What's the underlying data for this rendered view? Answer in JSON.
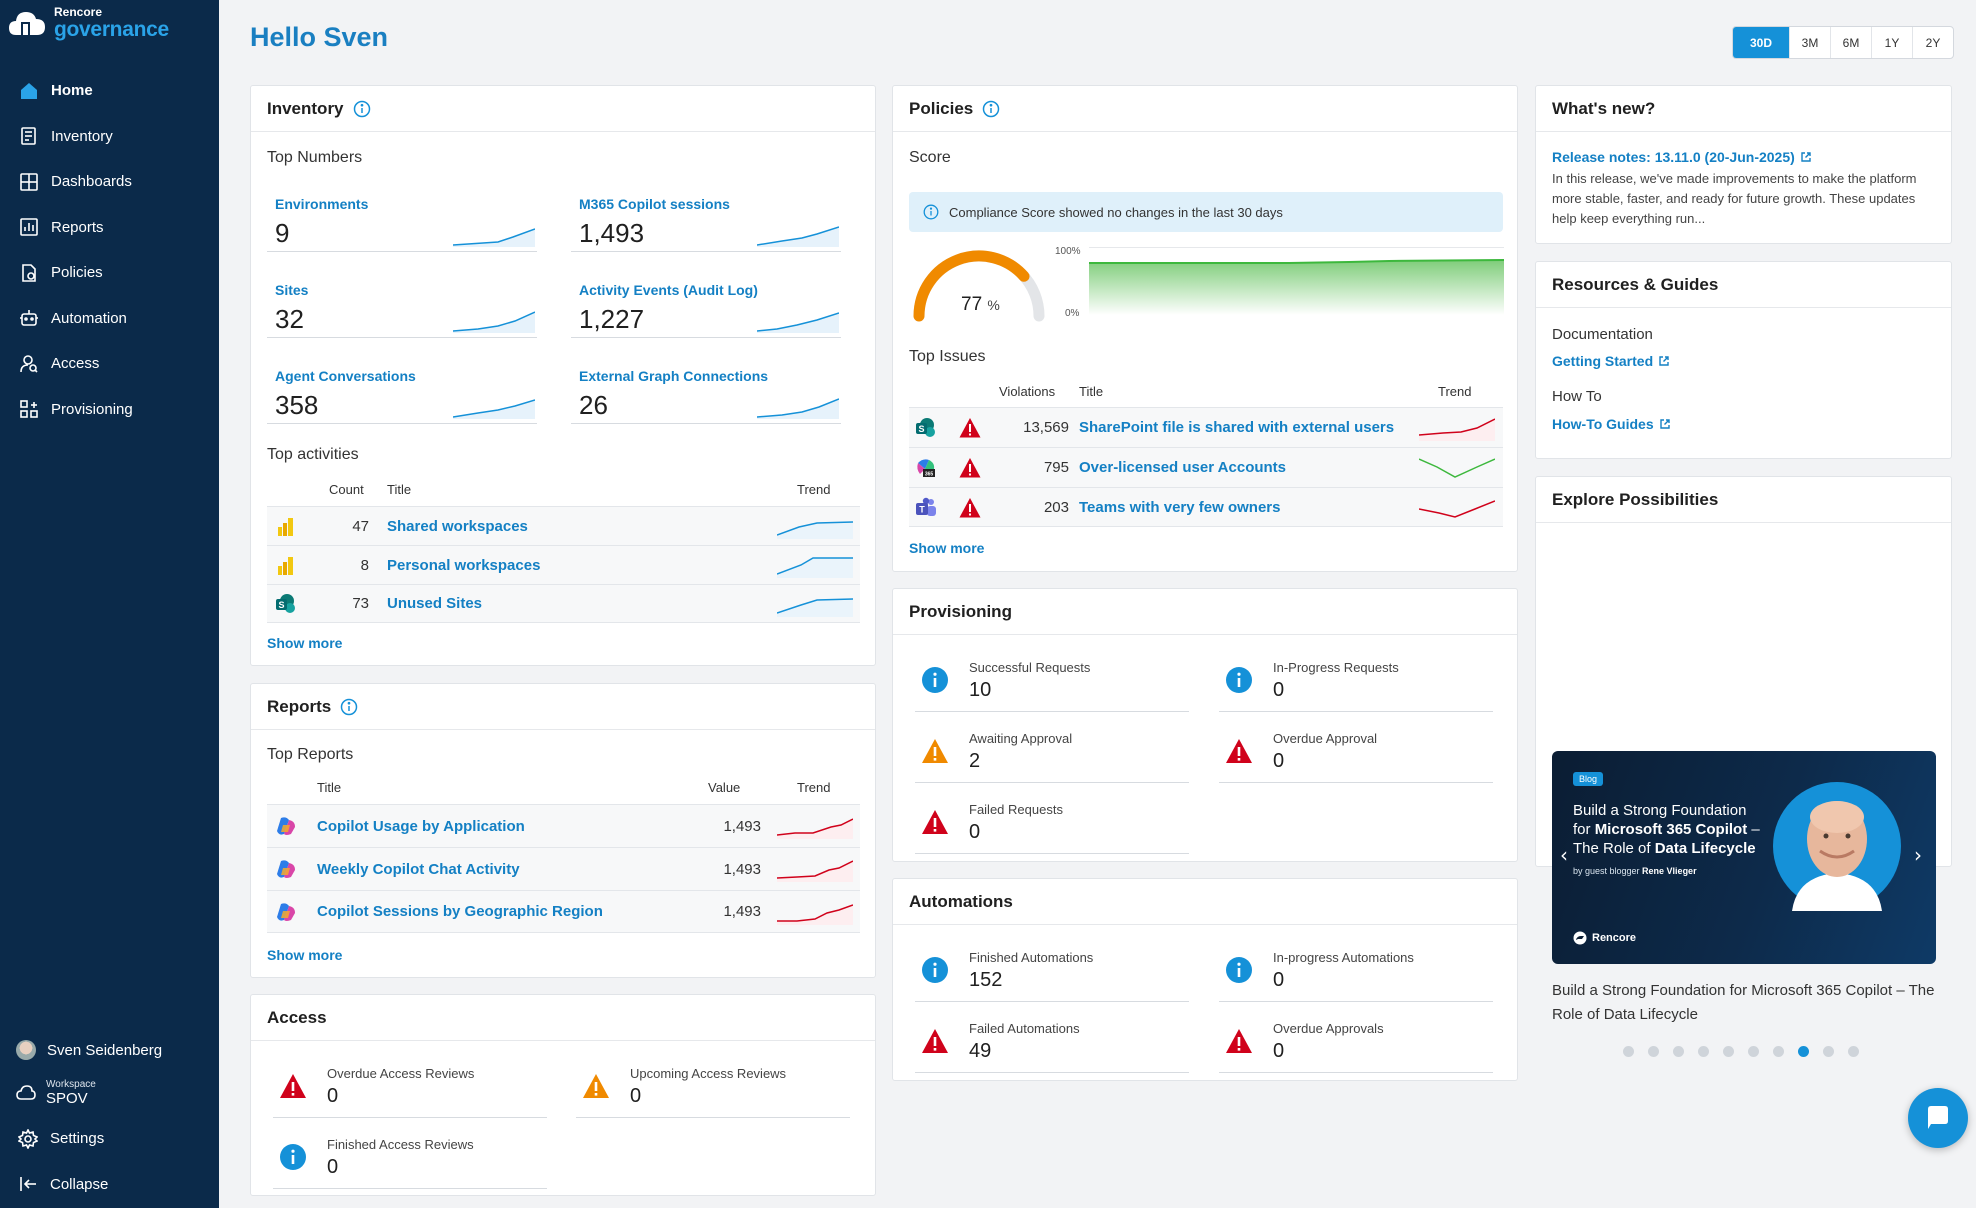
{
  "app": {
    "logo_small": "Rencore",
    "logo_big": "governance"
  },
  "nav": [
    {
      "label": "Home",
      "icon": "home-icon"
    },
    {
      "label": "Inventory",
      "icon": "inventory-icon"
    },
    {
      "label": "Dashboards",
      "icon": "dashboards-icon"
    },
    {
      "label": "Reports",
      "icon": "reports-icon"
    },
    {
      "label": "Policies",
      "icon": "policies-icon"
    },
    {
      "label": "Automation",
      "icon": "automation-icon"
    },
    {
      "label": "Access",
      "icon": "access-icon"
    },
    {
      "label": "Provisioning",
      "icon": "provisioning-icon"
    }
  ],
  "sidebar_bottom": {
    "user": "Sven Seidenberg",
    "workspace_label": "Workspace",
    "workspace": "SPOV",
    "settings": "Settings",
    "collapse": "Collapse"
  },
  "greeting": "Hello Sven",
  "ranges": [
    "30D",
    "3M",
    "6M",
    "1Y",
    "2Y"
  ],
  "inventory": {
    "title": "Inventory",
    "top_numbers_label": "Top Numbers",
    "numbers": [
      {
        "label": "Environments",
        "value": "9"
      },
      {
        "label": "M365 Copilot sessions",
        "value": "1,493"
      },
      {
        "label": "Sites",
        "value": "32"
      },
      {
        "label": "Activity Events (Audit Log)",
        "value": "1,227"
      },
      {
        "label": "Agent Conversations",
        "value": "358"
      },
      {
        "label": "External Graph Connections",
        "value": "26"
      }
    ],
    "top_activities_label": "Top activities",
    "activity_headers": {
      "count": "Count",
      "title": "Title",
      "trend": "Trend"
    },
    "activities": [
      {
        "count": "47",
        "title": "Shared workspaces",
        "icon": "power-bi-icon"
      },
      {
        "count": "8",
        "title": "Personal workspaces",
        "icon": "power-bi-icon"
      },
      {
        "count": "73",
        "title": "Unused Sites",
        "icon": "sharepoint-icon"
      }
    ],
    "show_more": "Show more"
  },
  "reports": {
    "title": "Reports",
    "top_reports_label": "Top Reports",
    "headers": {
      "title": "Title",
      "value": "Value",
      "trend": "Trend"
    },
    "items": [
      {
        "title": "Copilot Usage by Application",
        "value": "1,493",
        "icon": "copilot-icon"
      },
      {
        "title": "Weekly Copilot Chat Activity",
        "value": "1,493",
        "icon": "copilot-icon"
      },
      {
        "title": "Copilot Sessions by Geographic Region",
        "value": "1,493",
        "icon": "copilot-icon"
      }
    ],
    "show_more": "Show more"
  },
  "access": {
    "title": "Access",
    "items": [
      {
        "label": "Overdue Access Reviews",
        "value": "0",
        "status": "error"
      },
      {
        "label": "Upcoming Access Reviews",
        "value": "0",
        "status": "warning"
      },
      {
        "label": "Finished Access Reviews",
        "value": "0",
        "status": "info"
      }
    ]
  },
  "policies": {
    "title": "Policies",
    "score_label": "Score",
    "banner": "Compliance Score showed no changes in the last 30 days",
    "score_value": "77",
    "score_unit": "%",
    "score_fraction": 0.77,
    "chart_max_label": "100%",
    "chart_min_label": "0%",
    "top_issues_label": "Top Issues",
    "headers": {
      "violations": "Violations",
      "title": "Title",
      "trend": "Trend"
    },
    "issues": [
      {
        "violations": "13,569",
        "title": "SharePoint file is shared with external users",
        "icon": "sharepoint-icon",
        "trend_color": "#d0021b"
      },
      {
        "violations": "795",
        "title": "Over-licensed user Accounts",
        "icon": "m365-icon",
        "trend_color": "#3db83d"
      },
      {
        "violations": "203",
        "title": "Teams with very few owners",
        "icon": "teams-icon",
        "trend_color": "#d0021b"
      }
    ],
    "show_more": "Show more"
  },
  "provisioning": {
    "title": "Provisioning",
    "items": [
      {
        "label": "Successful Requests",
        "value": "10",
        "status": "info"
      },
      {
        "label": "In-Progress Requests",
        "value": "0",
        "status": "info"
      },
      {
        "label": "Awaiting Approval",
        "value": "2",
        "status": "warning"
      },
      {
        "label": "Overdue Approval",
        "value": "0",
        "status": "error"
      },
      {
        "label": "Failed Requests",
        "value": "0",
        "status": "error"
      }
    ]
  },
  "automations": {
    "title": "Automations",
    "items": [
      {
        "label": "Finished Automations",
        "value": "152",
        "status": "info"
      },
      {
        "label": "In-progress Automations",
        "value": "0",
        "status": "info"
      },
      {
        "label": "Failed Automations",
        "value": "49",
        "status": "error"
      },
      {
        "label": "Overdue Approvals",
        "value": "0",
        "status": "error"
      }
    ]
  },
  "whats_new": {
    "title": "What's new?",
    "link": "Release notes: 13.11.0 (20-Jun-2025)",
    "text": "In this release, we've made improvements to make the platform more stable, faster, and ready for future growth. These updates help keep everything run..."
  },
  "resources": {
    "title": "Resources & Guides",
    "doc_label": "Documentation",
    "doc_link": "Getting Started",
    "howto_label": "How To",
    "howto_link": "How-To Guides"
  },
  "explore": {
    "title": "Explore Possibilities",
    "banner_tag": "Blog",
    "banner_line1": "Build a Strong Foundation",
    "banner_line2_a": "for ",
    "banner_line2_b": "Microsoft 365 Copilot",
    "banner_line2_c": " –",
    "banner_line3_a": "The Role of ",
    "banner_line3_b": "Data Lifecycle",
    "banner_byline_a": "by guest blogger ",
    "banner_byline_b": "Rene Vlieger",
    "banner_brand": "Rencore",
    "caption": "Build a Strong Foundation for Microsoft 365 Copilot – The Role of Data Lifecycle",
    "dot_count": 10,
    "active_dot": 7
  },
  "colors": {
    "sidebar": "#0b2a4a",
    "accent": "#1591d8",
    "link": "#1480c4",
    "error": "#d0021b",
    "warning": "#f08a00"
  }
}
